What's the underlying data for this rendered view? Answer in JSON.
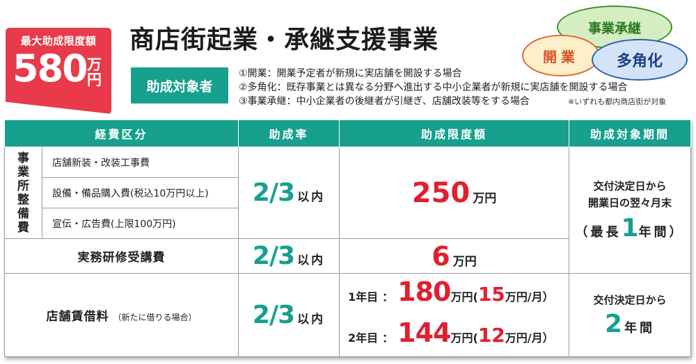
{
  "badge": {
    "label": "最大助成限度額",
    "amount": "580",
    "unit": "万円"
  },
  "title": "商店街起業・承継支援事業",
  "target": {
    "label": "助成対象者",
    "items": [
      "①開業：開業予定者が新規に実店舗を開設する場合",
      "②多角化：既存事業とは異なる分野へ進出する中小企業者が新規に実店舗を開設する場合",
      "③事業承継：中小企業者の後継者が引継ぎ、店舗改装等をする場合"
    ],
    "note": "※いずれも都内商店街が対象"
  },
  "bubbles": {
    "succession": "事業承継",
    "opening": "開業",
    "diversify": "多角化"
  },
  "table": {
    "headers": [
      "経費区分",
      "助成率",
      "助成限度額",
      "助成対象期間"
    ],
    "facility_category": [
      "事",
      "業",
      "所",
      "整",
      "備",
      "費"
    ],
    "facility_items": [
      "店舗新装・改装工事費",
      "設備・備品購入費(税込10万円以上)",
      "宣伝・広告費(上限100万円)"
    ],
    "facility_rate": "2/3",
    "rate_suffix": "以内",
    "facility_limit": "250",
    "unit_man_yen": "万円",
    "period_1": {
      "line1": "交付決定日から",
      "line2": "開業日の翌々月末",
      "prefix": "（最長",
      "num": "1",
      "suffix": "年間）"
    },
    "training": {
      "label": "実務研修受講費",
      "rate": "2/3",
      "limit": "6"
    },
    "rent": {
      "label": "店舗賃借料",
      "note": "（新たに借りる場合）",
      "rate": "2/3",
      "year1_label": "1年目",
      "year1_amount": "180",
      "year1_monthly": "15",
      "year2_label": "2年目",
      "year2_amount": "144",
      "year2_monthly": "12",
      "monthly_unit": "万円/月）",
      "paren_open": "万円(",
      "colon": "：",
      "period_line1": "交付決定日から",
      "period_num": "2",
      "period_unit": "年間"
    }
  },
  "colors": {
    "teal": "#16a08d",
    "red": "#e0202e",
    "badge_red": "#e83a4a"
  }
}
